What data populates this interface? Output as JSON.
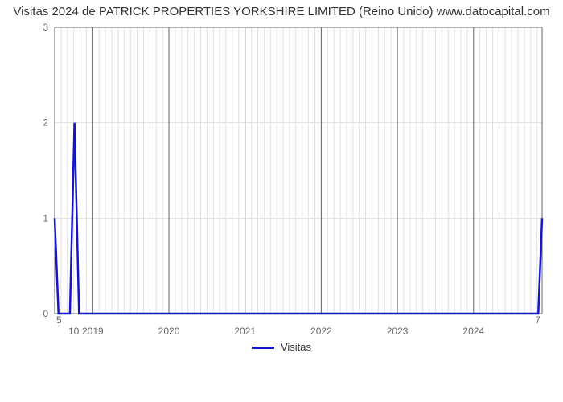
{
  "title": "Visitas 2024 de PATRICK PROPERTIES YORKSHIRE LIMITED (Reino Unido) www.datocapital.com",
  "chart": {
    "type": "line",
    "background_color": "#ffffff",
    "grid_major_color": "#646464",
    "grid_minor_color": "#e0e0e0",
    "line_color": "#1515c8",
    "line_width": 2.5,
    "title_fontsize": 15,
    "label_fontsize": 12,
    "x_year_start": 2018.5,
    "x_year_end": 2024.9,
    "year_ticks": [
      2019,
      2020,
      2021,
      2022,
      2023,
      2024
    ],
    "y_min": 0,
    "y_max": 3,
    "y_ticks": [
      0,
      1,
      2,
      3
    ],
    "secondary_x_left": "5",
    "secondary_x_right": "7",
    "minor_x_label": "10",
    "minor_x_year": 2018.75,
    "data": [
      {
        "x": 2018.5,
        "y": 1.0
      },
      {
        "x": 2018.55,
        "y": 0.0
      },
      {
        "x": 2018.7,
        "y": 0.0
      },
      {
        "x": 2018.76,
        "y": 2.0
      },
      {
        "x": 2018.82,
        "y": 0.0
      },
      {
        "x": 2024.85,
        "y": 0.0
      },
      {
        "x": 2024.9,
        "y": 1.0
      }
    ]
  },
  "legend": {
    "label": "Visitas"
  }
}
